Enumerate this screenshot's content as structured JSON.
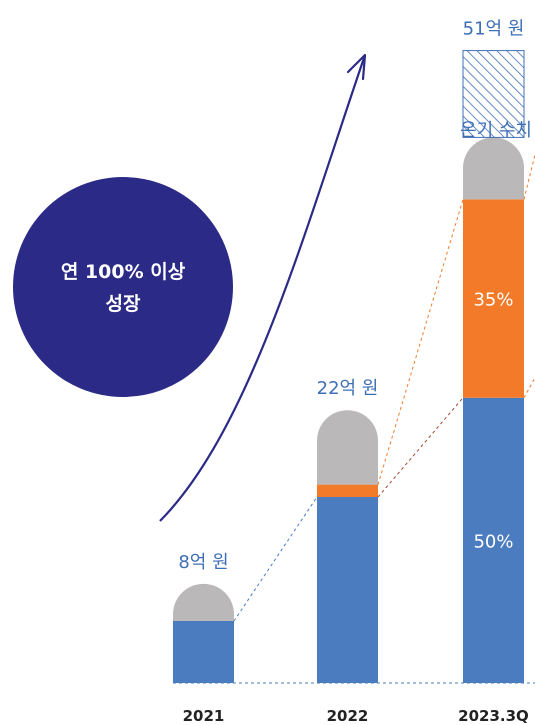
{
  "chart_data": {
    "type": "bar",
    "categories": [
      "2021",
      "2022",
      "2023.3Q"
    ],
    "totals": [
      8,
      22,
      51
    ],
    "total_labels": [
      "8억 원",
      "22억 원",
      "51억 원"
    ],
    "series": [
      {
        "values": [
          5,
          15,
          23
        ],
        "color": "#4b7cc0"
      },
      {
        "values": [
          0,
          1,
          16
        ],
        "color": "#f27a29"
      },
      {
        "values": [
          3,
          6,
          5
        ],
        "color": "#bbb8b9"
      },
      {
        "values": [
          0,
          0,
          7
        ],
        "color": "#3e6fb6",
        "pattern": "hatched"
      }
    ],
    "segment_labels": {
      "2023.3Q": [
        "50%",
        "35%"
      ]
    },
    "pending_label": "온기 수치",
    "growth_badge": {
      "line1": "연 100% 이상",
      "line2": "성장",
      "color": "#2b2a86"
    },
    "colors": {
      "curve": "#2b2a86",
      "dashed_blue": "#4b7cc0",
      "dashed_orange": "#f27a29"
    }
  }
}
